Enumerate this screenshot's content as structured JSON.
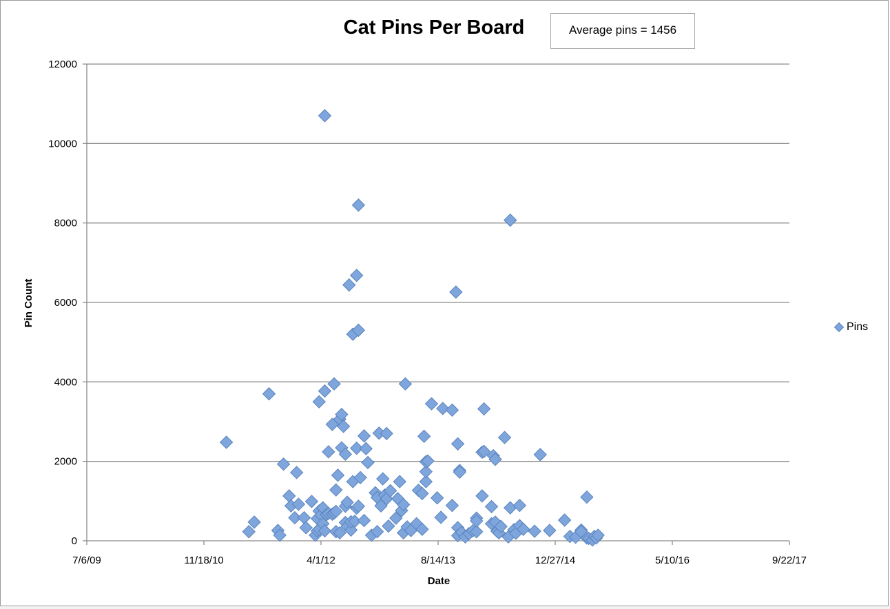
{
  "chart_data": {
    "type": "scatter",
    "title": "Cat Pins Per Board",
    "annotation": "Average pins = 1456",
    "xlabel": "Date",
    "ylabel": "Pin Count",
    "x_ticks": [
      "7/6/09",
      "11/18/10",
      "4/1/12",
      "8/14/13",
      "12/27/14",
      "5/10/16",
      "9/22/17"
    ],
    "y_ticks": [
      "0",
      "2000",
      "4000",
      "6000",
      "8000",
      "10000",
      "12000"
    ],
    "ylim": [
      0,
      12000
    ],
    "xlim": [
      "2009-07-06",
      "2017-09-22"
    ],
    "grid": "horizontal",
    "legend_position": "right",
    "marker_color": "#7ea6dc",
    "series": [
      {
        "name": "Pins",
        "points": [
          [
            "2011-02-22",
            2480
          ],
          [
            "2011-05-29",
            230
          ],
          [
            "2011-06-21",
            470
          ],
          [
            "2011-08-23",
            3700
          ],
          [
            "2011-09-30",
            260
          ],
          [
            "2011-10-08",
            140
          ],
          [
            "2011-10-24",
            1930
          ],
          [
            "2011-11-17",
            1130
          ],
          [
            "2011-11-25",
            880
          ],
          [
            "2011-12-11",
            580
          ],
          [
            "2011-12-19",
            1720
          ],
          [
            "2011-12-27",
            920
          ],
          [
            "2012-01-20",
            580
          ],
          [
            "2012-01-28",
            330
          ],
          [
            "2012-02-21",
            990
          ],
          [
            "2012-03-08",
            140
          ],
          [
            "2012-03-16",
            250
          ],
          [
            "2012-03-16",
            560
          ],
          [
            "2012-03-24",
            3500
          ],
          [
            "2012-03-24",
            290
          ],
          [
            "2012-03-24",
            750
          ],
          [
            "2012-04-01",
            650
          ],
          [
            "2012-04-09",
            430
          ],
          [
            "2012-04-09",
            830
          ],
          [
            "2012-04-17",
            10700
          ],
          [
            "2012-04-17",
            250
          ],
          [
            "2012-04-17",
            3770
          ],
          [
            "2012-04-25",
            660
          ],
          [
            "2012-05-03",
            2240
          ],
          [
            "2012-05-03",
            690
          ],
          [
            "2012-05-19",
            2930
          ],
          [
            "2012-05-19",
            670
          ],
          [
            "2012-05-27",
            3950
          ],
          [
            "2012-05-27",
            700
          ],
          [
            "2012-06-04",
            230
          ],
          [
            "2012-06-04",
            1280
          ],
          [
            "2012-06-04",
            740
          ],
          [
            "2012-06-12",
            1650
          ],
          [
            "2012-06-20",
            3060
          ],
          [
            "2012-06-20",
            200
          ],
          [
            "2012-06-28",
            3180
          ],
          [
            "2012-06-28",
            2340
          ],
          [
            "2012-07-06",
            2880
          ],
          [
            "2012-07-14",
            2180
          ],
          [
            "2012-07-14",
            870
          ],
          [
            "2012-07-14",
            460
          ],
          [
            "2012-07-22",
            360
          ],
          [
            "2012-07-22",
            970
          ],
          [
            "2012-07-30",
            6440
          ],
          [
            "2012-08-07",
            270
          ],
          [
            "2012-08-07",
            480
          ],
          [
            "2012-08-15",
            5200
          ],
          [
            "2012-08-15",
            1490
          ],
          [
            "2012-08-23",
            490
          ],
          [
            "2012-08-31",
            820
          ],
          [
            "2012-08-31",
            6680
          ],
          [
            "2012-08-31",
            2330
          ],
          [
            "2012-09-08",
            5300
          ],
          [
            "2012-09-08",
            8450
          ],
          [
            "2012-09-08",
            870
          ],
          [
            "2012-09-16",
            1590
          ],
          [
            "2012-10-02",
            2640
          ],
          [
            "2012-10-02",
            510
          ],
          [
            "2012-10-10",
            2320
          ],
          [
            "2012-10-18",
            1970
          ],
          [
            "2012-11-03",
            140
          ],
          [
            "2012-11-19",
            1210
          ],
          [
            "2012-11-27",
            1090
          ],
          [
            "2012-11-27",
            230
          ],
          [
            "2012-12-05",
            2710
          ],
          [
            "2012-12-13",
            880
          ],
          [
            "2012-12-21",
            1560
          ],
          [
            "2012-12-29",
            1150
          ],
          [
            "2013-01-06",
            2700
          ],
          [
            "2013-01-06",
            1060
          ],
          [
            "2013-01-14",
            370
          ],
          [
            "2013-01-22",
            1260
          ],
          [
            "2013-02-15",
            570
          ],
          [
            "2013-02-23",
            1060
          ],
          [
            "2013-03-03",
            1490
          ],
          [
            "2013-03-11",
            760
          ],
          [
            "2013-03-19",
            200
          ],
          [
            "2013-03-19",
            910
          ],
          [
            "2013-03-27",
            3950
          ],
          [
            "2013-04-04",
            350
          ],
          [
            "2013-04-20",
            260
          ],
          [
            "2013-05-14",
            430
          ],
          [
            "2013-05-22",
            1270
          ],
          [
            "2013-06-07",
            290
          ],
          [
            "2013-06-07",
            1190
          ],
          [
            "2013-06-15",
            2630
          ],
          [
            "2013-06-23",
            1490
          ],
          [
            "2013-06-23",
            1740
          ],
          [
            "2013-06-23",
            1990
          ],
          [
            "2013-07-01",
            2010
          ],
          [
            "2013-07-17",
            3450
          ],
          [
            "2013-08-10",
            1080
          ],
          [
            "2013-08-26",
            590
          ],
          [
            "2013-09-03",
            3330
          ],
          [
            "2013-10-13",
            890
          ],
          [
            "2013-10-13",
            3290
          ],
          [
            "2013-10-29",
            6260
          ],
          [
            "2013-11-06",
            330
          ],
          [
            "2013-11-06",
            2440
          ],
          [
            "2013-11-06",
            130
          ],
          [
            "2013-11-14",
            1770
          ],
          [
            "2013-11-14",
            1730
          ],
          [
            "2013-11-22",
            210
          ],
          [
            "2013-12-08",
            100
          ],
          [
            "2013-12-24",
            180
          ],
          [
            "2014-01-09",
            250
          ],
          [
            "2014-01-25",
            230
          ],
          [
            "2014-01-25",
            570
          ],
          [
            "2014-01-25",
            500
          ],
          [
            "2014-02-18",
            1130
          ],
          [
            "2014-02-18",
            2230
          ],
          [
            "2014-02-26",
            2250
          ],
          [
            "2014-02-26",
            3320
          ],
          [
            "2014-03-30",
            430
          ],
          [
            "2014-03-30",
            860
          ],
          [
            "2014-04-07",
            2140
          ],
          [
            "2014-04-15",
            2050
          ],
          [
            "2014-04-15",
            470
          ],
          [
            "2014-04-23",
            240
          ],
          [
            "2014-05-01",
            200
          ],
          [
            "2014-05-09",
            360
          ],
          [
            "2014-05-25",
            2600
          ],
          [
            "2014-06-10",
            100
          ],
          [
            "2014-06-18",
            8070
          ],
          [
            "2014-06-18",
            830
          ],
          [
            "2014-07-04",
            280
          ],
          [
            "2014-07-12",
            190
          ],
          [
            "2014-07-28",
            890
          ],
          [
            "2014-07-28",
            380
          ],
          [
            "2014-08-13",
            290
          ],
          [
            "2014-09-30",
            240
          ],
          [
            "2014-10-24",
            2170
          ],
          [
            "2014-12-03",
            260
          ],
          [
            "2015-02-05",
            520
          ],
          [
            "2015-02-28",
            110
          ],
          [
            "2015-03-24",
            90
          ],
          [
            "2015-04-17",
            270
          ],
          [
            "2015-04-17",
            230
          ],
          [
            "2015-05-11",
            1100
          ],
          [
            "2015-05-11",
            70
          ],
          [
            "2015-05-19",
            60
          ],
          [
            "2015-06-04",
            20
          ],
          [
            "2015-06-12",
            110
          ],
          [
            "2015-06-20",
            70
          ],
          [
            "2015-06-28",
            140
          ]
        ]
      }
    ]
  }
}
